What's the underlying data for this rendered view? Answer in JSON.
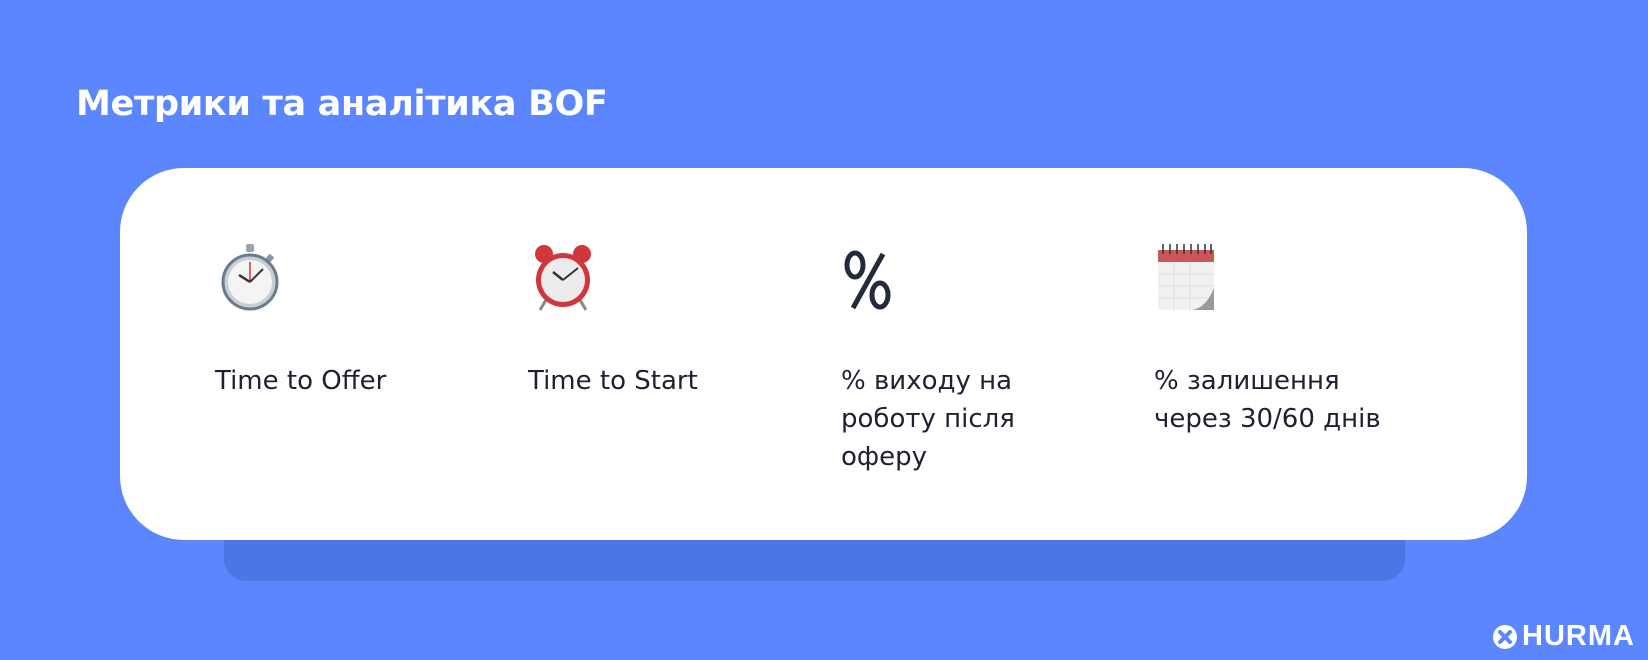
{
  "title": "Метрики та аналітика BOF",
  "metrics": [
    {
      "icon": "stopwatch-icon",
      "label": "Time to Offer"
    },
    {
      "icon": "alarm-clock-icon",
      "label": "Time to Start"
    },
    {
      "icon": "percent-icon",
      "label": "% виходу на роботу після оферу"
    },
    {
      "icon": "calendar-icon",
      "label": "% залишення через 30/60 днів"
    }
  ],
  "logo": {
    "text": "HURMA"
  },
  "colors": {
    "background": "#5b86fe",
    "card": "#ffffff",
    "shadow": "#4a76e6",
    "text": "#1e2130"
  }
}
